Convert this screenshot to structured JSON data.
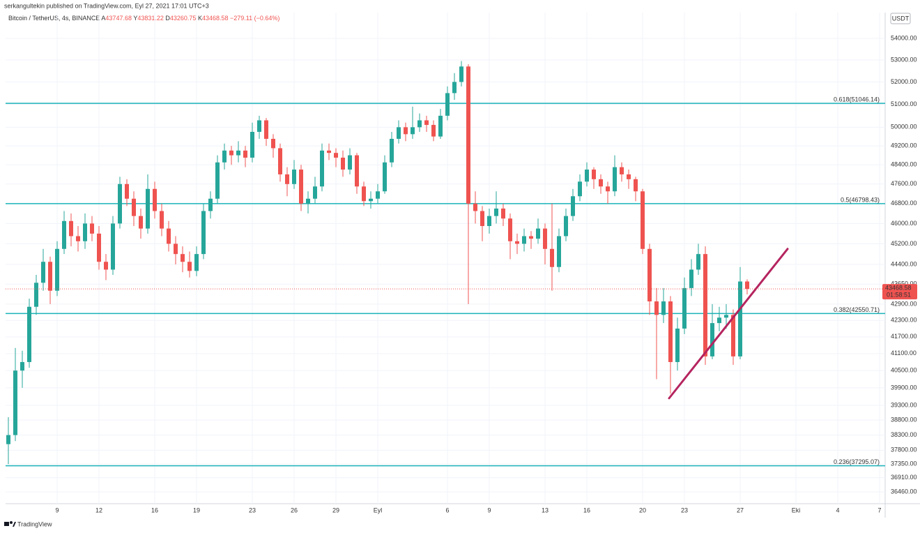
{
  "header": {
    "byline": "serkangultekin published on TradingView.com, Eyl 27, 2021 17:01 UTC+3",
    "symbol": "Bitcoin / TetherUS, 4s, BINANCE",
    "ohlc_labels": [
      "A",
      "Y",
      "D",
      "K"
    ],
    "change": "−279.11 (−0.64%)"
  },
  "chart_data": {
    "type": "candlestick",
    "x": [
      5.5,
      6,
      6.5,
      7,
      7.5,
      8,
      8.5,
      9,
      9.5,
      10,
      10.5,
      11,
      11.5,
      12,
      12.5,
      13,
      13.5,
      14,
      14.5,
      15,
      15.5,
      16,
      16.5,
      17,
      17.5,
      18,
      18.5,
      19,
      19.5,
      20,
      20.5,
      21,
      21.5,
      22,
      22.5,
      23,
      23.5,
      24,
      24.5,
      25,
      25.5,
      26,
      26.5,
      27,
      27.5,
      28,
      28.5,
      29,
      29.5,
      30,
      30.5,
      31,
      31.5,
      32,
      32.5,
      33,
      33.5,
      34,
      34.5,
      35,
      35.5,
      36,
      36.5,
      37,
      37.5,
      38,
      38.5,
      39,
      39.5,
      40,
      40.5,
      41,
      41.5,
      42,
      42.5,
      43,
      43.5,
      44,
      44.5,
      45,
      45.5,
      46,
      46.5,
      47,
      47.5,
      48,
      48.5,
      49,
      49.5,
      50,
      50.5,
      51,
      51.5,
      52,
      52.5,
      53,
      53.5,
      54,
      54.5,
      55,
      55.5,
      56,
      56.5,
      57,
      57.5,
      58,
      58.5
    ],
    "open": [
      38000,
      38300,
      40500,
      40800,
      42800,
      43700,
      44500,
      43400,
      45000,
      46100,
      45500,
      45300,
      46000,
      45600,
      44500,
      44200,
      46000,
      47600,
      47000,
      46300,
      45800,
      47400,
      46500,
      45800,
      45200,
      44800,
      44500,
      44150,
      44800,
      46500,
      47000,
      48500,
      49000,
      48800,
      49000,
      48700,
      49800,
      50300,
      49500,
      49100,
      48000,
      47600,
      48200,
      46800,
      47000,
      47500,
      49000,
      48900,
      48700,
      48200,
      48800,
      47500,
      46900,
      47000,
      47300,
      48500,
      49500,
      50000,
      49700,
      50000,
      50300,
      50100,
      49600,
      50500,
      51500,
      52000,
      52700,
      46800,
      46500,
      45900,
      46300,
      46600,
      46200,
      45300,
      45200,
      45500,
      45400,
      45800,
      45000,
      44300,
      45500,
      46300,
      47100,
      47700,
      48200,
      47800,
      47500,
      47300,
      48300,
      48000,
      47800,
      47300,
      45000,
      43000,
      42500,
      43000,
      40800,
      42000,
      43500,
      44200,
      44800,
      41000,
      42200,
      42400,
      42500,
      41000,
      43747.68
    ],
    "high": [
      38900,
      41300,
      41200,
      43100,
      44000,
      45000,
      44700,
      45300,
      46500,
      46400,
      45900,
      46400,
      46300,
      45900,
      44800,
      46300,
      47900,
      47800,
      47300,
      46600,
      48000,
      47700,
      46800,
      46100,
      45500,
      45100,
      44900,
      45100,
      46800,
      47300,
      48800,
      49300,
      49200,
      49400,
      49200,
      50200,
      50500,
      50400,
      49700,
      49300,
      48300,
      48600,
      48400,
      47300,
      47900,
      49300,
      49300,
      49100,
      49000,
      49100,
      48900,
      47700,
      47300,
      47600,
      48800,
      49800,
      50300,
      50200,
      50900,
      50600,
      50500,
      50300,
      50800,
      51800,
      52400,
      52950,
      52800,
      47300,
      46700,
      46600,
      47300,
      46800,
      46400,
      45600,
      45800,
      45700,
      46200,
      46000,
      46800,
      45800,
      46600,
      47400,
      48000,
      48500,
      48300,
      48000,
      47700,
      48800,
      48500,
      48200,
      47900,
      47400,
      45200,
      43500,
      43500,
      43200,
      42400,
      43900,
      44600,
      45200,
      45100,
      42900,
      42800,
      42900,
      42700,
      44300,
      43831.22
    ],
    "low": [
      37350,
      38100,
      39900,
      40600,
      42500,
      43400,
      42900,
      43200,
      44800,
      45100,
      44900,
      45000,
      45300,
      44200,
      43800,
      44000,
      45800,
      46700,
      45900,
      45400,
      45600,
      46200,
      45500,
      44900,
      44400,
      44100,
      43900,
      43950,
      44600,
      46200,
      46800,
      48200,
      48400,
      48500,
      48300,
      48500,
      49500,
      49200,
      48700,
      47700,
      47100,
      47400,
      46500,
      46400,
      46800,
      47300,
      48600,
      48300,
      47900,
      48000,
      47200,
      46700,
      46600,
      46800,
      47200,
      48300,
      49300,
      49400,
      49500,
      49800,
      49800,
      49400,
      49500,
      50300,
      51200,
      51800,
      42900,
      46000,
      45300,
      45600,
      46000,
      45900,
      44600,
      44800,
      44900,
      45000,
      45200,
      44400,
      43400,
      44100,
      45300,
      46100,
      46900,
      47500,
      47400,
      47200,
      46800,
      47100,
      47700,
      47400,
      46900,
      44800,
      42500,
      40200,
      42200,
      39700,
      40500,
      41800,
      43200,
      44000,
      40700,
      40900,
      41900,
      42000,
      40700,
      40900,
      43260.75
    ],
    "close": [
      38300,
      40500,
      40800,
      42800,
      43700,
      44500,
      43400,
      45000,
      46100,
      45500,
      45300,
      46000,
      45600,
      44500,
      44200,
      46000,
      47600,
      47000,
      46300,
      45800,
      47400,
      46500,
      45800,
      45200,
      44800,
      44500,
      44150,
      44800,
      46500,
      47000,
      48500,
      49000,
      48800,
      49000,
      48700,
      49800,
      50300,
      49500,
      49100,
      48000,
      47600,
      48200,
      46800,
      47000,
      47500,
      49000,
      48900,
      48700,
      48200,
      48800,
      47500,
      46900,
      47000,
      47300,
      48500,
      49500,
      50000,
      49700,
      50000,
      50300,
      50100,
      49600,
      50500,
      51500,
      52000,
      52700,
      46800,
      46500,
      45900,
      46300,
      46600,
      46200,
      45300,
      45200,
      45500,
      45400,
      45800,
      45000,
      44300,
      45500,
      46300,
      47100,
      47700,
      48200,
      47800,
      47500,
      47300,
      48300,
      48000,
      47800,
      47300,
      45000,
      43000,
      42500,
      43000,
      40800,
      42000,
      43500,
      44200,
      44800,
      41000,
      42200,
      42400,
      42500,
      41000,
      43747.68,
      43468.58
    ],
    "up_color": "#26a69a",
    "down_color": "#ef5350",
    "log_scale": true,
    "grid": true,
    "ylim": [
      36090,
      55220
    ],
    "yticks": [
      {
        "value": 54000,
        "label": "54000.00"
      },
      {
        "value": 53000,
        "label": "53000.00"
      },
      {
        "value": 52000,
        "label": "52000.00"
      },
      {
        "value": 51000,
        "label": "51000.00"
      },
      {
        "value": 50000,
        "label": "50000.00"
      },
      {
        "value": 49200,
        "label": "49200.00"
      },
      {
        "value": 48400,
        "label": "48400.00"
      },
      {
        "value": 47600,
        "label": "47600.00"
      },
      {
        "value": 46800,
        "label": "46800.00"
      },
      {
        "value": 46000,
        "label": "46000.00"
      },
      {
        "value": 45200,
        "label": "45200.00"
      },
      {
        "value": 44400,
        "label": "44400.00"
      },
      {
        "value": 43650,
        "label": "43650.00"
      },
      {
        "value": 42900,
        "label": "42900.00"
      },
      {
        "value": 42300,
        "label": "42300.00"
      },
      {
        "value": 41700,
        "label": "41700.00"
      },
      {
        "value": 41100,
        "label": "41100.00"
      },
      {
        "value": 40500,
        "label": "40500.00"
      },
      {
        "value": 39900,
        "label": "39900.00"
      },
      {
        "value": 39300,
        "label": "39300.00"
      },
      {
        "value": 38800,
        "label": "38800.00"
      },
      {
        "value": 38300,
        "label": "38300.00"
      },
      {
        "value": 37800,
        "label": "37800.00"
      },
      {
        "value": 37350,
        "label": "37350.00"
      },
      {
        "value": 36910,
        "label": "36910.00"
      },
      {
        "value": 36460,
        "label": "36460.00"
      }
    ],
    "xlim": [
      5.3,
      68.4
    ],
    "xticks": [
      9,
      12,
      16,
      19,
      23,
      26,
      29,
      {
        "value": 32,
        "label": "Eyl"
      },
      {
        "value": 37,
        "label": "6"
      },
      {
        "value": 40,
        "label": "9"
      },
      {
        "value": 44,
        "label": "13"
      },
      {
        "value": 47,
        "label": "16"
      },
      {
        "value": 51,
        "label": "20"
      },
      {
        "value": 54,
        "label": "23"
      },
      {
        "value": 58,
        "label": "27"
      },
      {
        "value": 62,
        "label": "Eki"
      },
      {
        "value": 65,
        "label": "4"
      },
      {
        "value": 68,
        "label": "7"
      }
    ],
    "currency": "USDT",
    "countdown": "01:58:51",
    "levels": [
      {
        "label": "0.618(51046.14)",
        "value": 51046.14
      },
      {
        "label": "0.5(46798.43)",
        "value": 46798.43
      },
      {
        "label": "0.382(42550.71)",
        "value": 42550.71
      },
      {
        "label": "0.236(37295.07)",
        "value": 37295.07
      }
    ],
    "level_color": "#1ab3b8",
    "trendline": {
      "x": [
        52.9,
        61.4
      ],
      "y": [
        39540,
        45000
      ],
      "color": "#b5245f"
    }
  },
  "footer": {
    "brand": "TradingView"
  }
}
